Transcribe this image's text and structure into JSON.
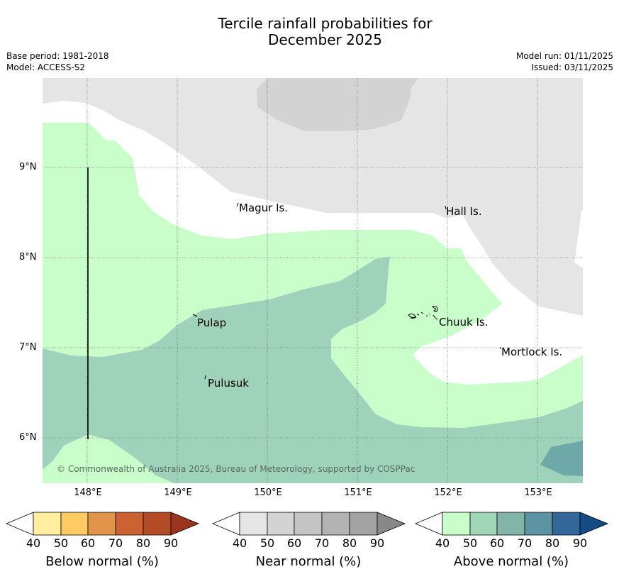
{
  "title_line1": "Tercile rainfall probabilities for",
  "title_line2": "December 2025",
  "base_period": "Base period: 1981-2018",
  "model": "Model: ACCESS-S2",
  "model_run": "Model run: 01/11/2025",
  "issued": "Issued: 03/11/2025",
  "lat_labels": [
    "9°N",
    "8°N",
    "7°N",
    "6°N"
  ],
  "lon_labels": [
    "148°E",
    "149°E",
    "150°E",
    "151°E",
    "152°E",
    "153°E"
  ],
  "places": {
    "magur": "Magur Is.",
    "hall": "Hall Is.",
    "pulap": "Pulap",
    "chuuk": "Chuuk Is.",
    "mortlock": "Mortlock Is.",
    "pulusuk": "Pulusuk"
  },
  "copyright": "© Commonwealth of Australia 2025, Bureau of Meteorology, supported by COSPPac",
  "colorbars": [
    {
      "title": "Below normal (%)",
      "ticks": [
        "40",
        "50",
        "60",
        "70",
        "80",
        "90"
      ],
      "colors": [
        "#ffffff",
        "#ffeda0",
        "#fecb63",
        "#e2954a",
        "#cc6233",
        "#b34b27",
        "#99341f"
      ]
    },
    {
      "title": "Near normal (%)",
      "ticks": [
        "40",
        "50",
        "60",
        "70",
        "80",
        "90"
      ],
      "colors": [
        "#ffffff",
        "#e5e5e5",
        "#d3d3d3",
        "#c4c4c4",
        "#b3b3b3",
        "#a3a3a3",
        "#888888"
      ]
    },
    {
      "title": "Above normal (%)",
      "ticks": [
        "40",
        "50",
        "60",
        "70",
        "80",
        "90"
      ],
      "colors": [
        "#ffffff",
        "#c9fdc9",
        "#a0d5b8",
        "#82b5a8",
        "#5c94a3",
        "#336699",
        "#154a83"
      ]
    }
  ]
}
